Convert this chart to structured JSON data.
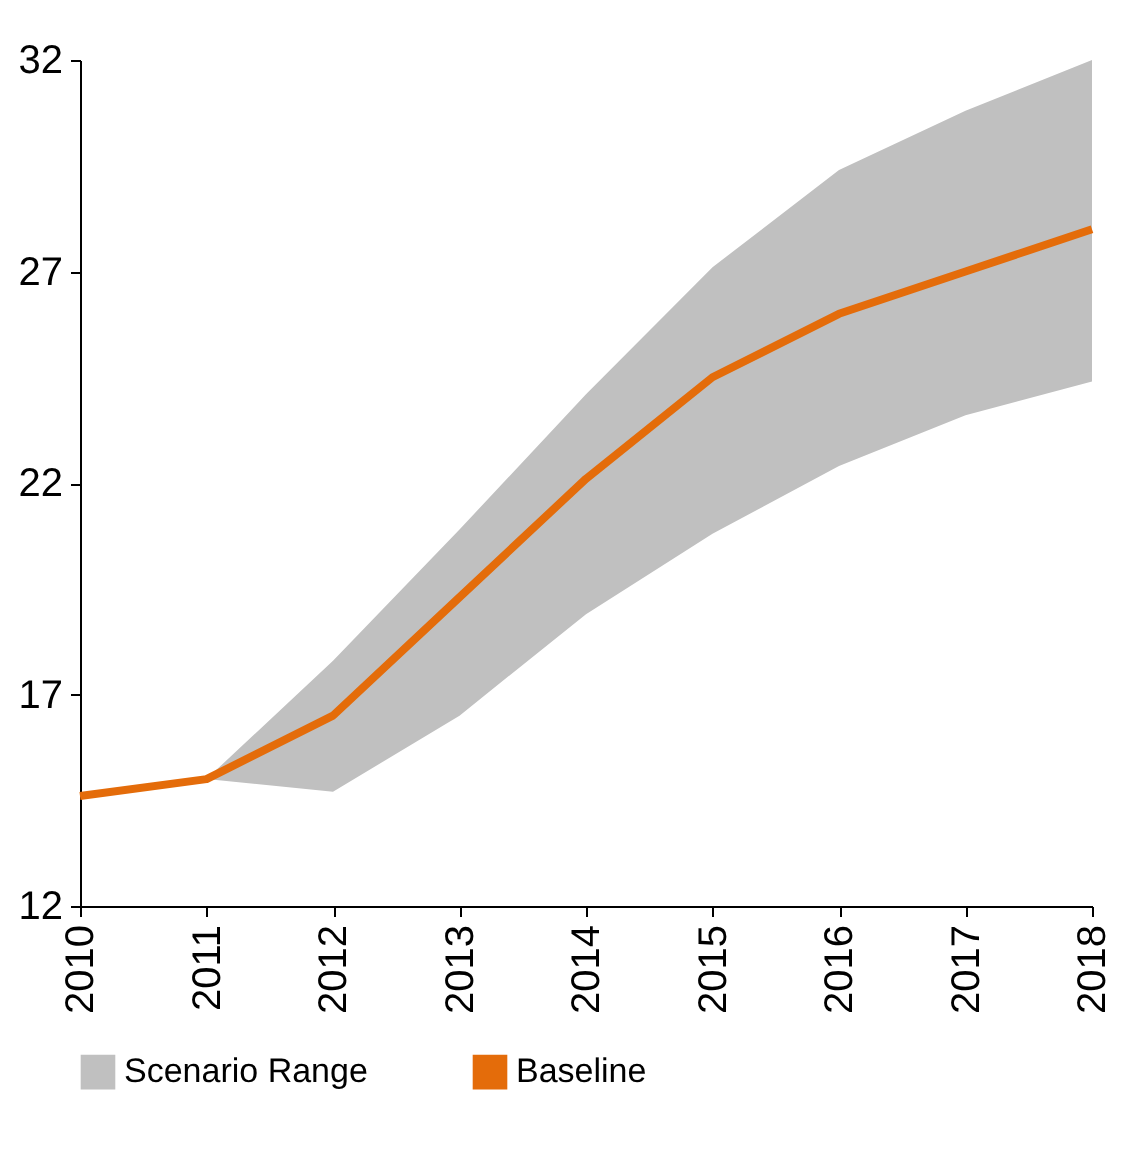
{
  "chart_data": {
    "type": "line",
    "x": [
      2010,
      2011,
      2012,
      2013,
      2014,
      2015,
      2016,
      2017,
      2018
    ],
    "series": [
      {
        "name": "Baseline",
        "type": "line",
        "color": "#e46c0a",
        "values": [
          14.6,
          15.0,
          16.5,
          19.3,
          22.1,
          24.5,
          26.0,
          27.0,
          28.0
        ],
        "lower": [
          null,
          15.0,
          14.7,
          16.5,
          18.9,
          20.8,
          22.4,
          23.6,
          24.4
        ],
        "upper": [
          null,
          15.0,
          17.8,
          20.9,
          24.1,
          27.1,
          29.4,
          30.8,
          32.0
        ]
      }
    ],
    "annotations": [
      "Scenario Range"
    ],
    "xlim": [
      2010,
      2018
    ],
    "xticks": [
      2010,
      2011,
      2012,
      2013,
      2014,
      2015,
      2016,
      2017,
      2018
    ],
    "ylim": [
      12,
      32
    ],
    "yticks": [
      12,
      17,
      22,
      27,
      32
    ],
    "grid": false,
    "legend": "bottom",
    "marker": "none",
    "line_style": "solid"
  }
}
